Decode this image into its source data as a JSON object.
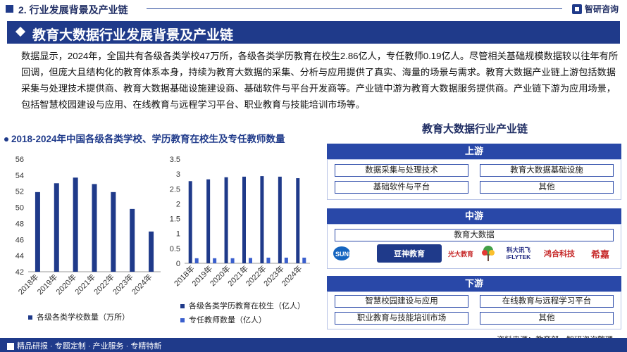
{
  "header": {
    "section_title": "2. 行业发展背景及产业链",
    "brand": "智研咨询"
  },
  "title": "教育大数据行业发展背景及产业链",
  "paragraph": "数据显示，2024年，全国共有各级各类学校47万所，各级各类学历教育在校生2.86亿人，专任教师0.19亿人。尽管相关基础规模数据较以往年有所回调，但庞大且结构化的教育体系本身，持续为教育大数据的采集、分析与应用提供了真实、海量的场景与需求。教育大数据产业链上游包括数据采集与处理技术提供商、教育大数据基础设施建设商、基础软件与平台开发商等。产业链中游为教育大数据服务提供商。产业链下游为应用场景，包括智慧校园建设与应用、在线教育与远程学习平台、职业教育与技能培训市场等。",
  "chart_heading": "2018-2024年中国各级各类学校、学历教育在校生及专任教师数量",
  "chart_data": [
    {
      "type": "bar",
      "categories": [
        "2018年",
        "2019年",
        "2020年",
        "2021年",
        "2022年",
        "2023年",
        "2024年"
      ],
      "series": [
        {
          "name": "各级各类学校数量（万所）",
          "values": [
            51.9,
            53.0,
            53.7,
            52.9,
            51.9,
            49.8,
            47.0
          ],
          "color": "#1f3a8a"
        }
      ],
      "ylim": [
        42,
        56
      ],
      "yticks": [
        "42",
        "44",
        "46",
        "48",
        "50",
        "52",
        "54",
        "56"
      ],
      "grid": false,
      "legend": "bottom"
    },
    {
      "type": "bar",
      "categories": [
        "2018年",
        "2019年",
        "2020年",
        "2021年",
        "2022年",
        "2023年",
        "2024年"
      ],
      "series": [
        {
          "name": "各级各类学历教育在校生（亿人）",
          "values": [
            2.76,
            2.82,
            2.89,
            2.91,
            2.93,
            2.91,
            2.86
          ],
          "color": "#1f3a8a"
        },
        {
          "name": "专任教师数量（亿人）",
          "values": [
            0.17,
            0.17,
            0.17,
            0.18,
            0.19,
            0.19,
            0.19
          ],
          "color": "#3a5fcd"
        }
      ],
      "ylim": [
        0,
        3.5
      ],
      "yticks": [
        "0",
        "0.5",
        "1",
        "1.5",
        "2",
        "2.5",
        "3",
        "3.5"
      ],
      "grid": false,
      "legend": "bottom"
    }
  ],
  "chain": {
    "title": "教育大数据行业产业链",
    "upstream": {
      "label": "上游",
      "items": [
        "数据采集与处理技术",
        "教育大数据基础设施",
        "基础软件与平台",
        "其他"
      ]
    },
    "midstream": {
      "label": "中游",
      "items": [
        "教育大数据"
      ],
      "logos": [
        "SUNM net",
        "豆神教育",
        "光大教育",
        "科大讯飞 iFLYTEK",
        "鸿合科技",
        "希嘉"
      ]
    },
    "downstream": {
      "label": "下游",
      "items": [
        "智慧校园建设与应用",
        "在线教育与远程学习平台",
        "职业教育与技能培训市场",
        "其他"
      ]
    }
  },
  "source": "资料来源：教育部、智研咨询整理",
  "footer": "精品研报 · 专题定制 · 产业服务 · 专精特新",
  "colors": {
    "primary": "#1f3a8a",
    "accent": "#2948a8",
    "light_bar": "#3a5fcd"
  }
}
